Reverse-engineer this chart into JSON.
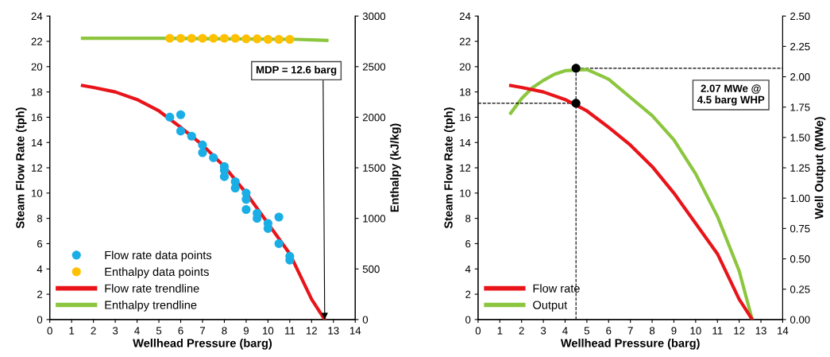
{
  "chart_data": [
    {
      "type": "line",
      "xlabel": "Wellhead Pressure (barg)",
      "ylabel": "Steam Flow Rate (tph)",
      "y2label": "Enthalpy (kJ/kg)",
      "xlim": [
        0,
        14
      ],
      "xticks": [
        0,
        1,
        2,
        3,
        4,
        5,
        6,
        7,
        8,
        9,
        10,
        11,
        12,
        13,
        14
      ],
      "ylim": [
        0,
        24
      ],
      "yticks": [
        0,
        2,
        4,
        6,
        8,
        10,
        12,
        14,
        16,
        18,
        20,
        22,
        24
      ],
      "y2lim": [
        0,
        3000
      ],
      "y2ticks": [
        0,
        500,
        1000,
        1500,
        2000,
        2500,
        3000
      ],
      "legend": "bottom left",
      "grid": false,
      "annotations": [
        {
          "text": "MDP = 12.6 barg",
          "x": 12.6,
          "y": 0
        }
      ],
      "series": [
        {
          "name": "Flow rate data points",
          "type": "scatter",
          "marker": "circle",
          "color": "#1aaee6",
          "x": [
            5.5,
            6.0,
            6.0,
            6.5,
            7.0,
            7.0,
            7.5,
            8.0,
            8.0,
            8.0,
            8.5,
            8.5,
            9.0,
            9.0,
            9.0,
            9.5,
            9.5,
            10.0,
            10.0,
            10.5,
            10.5,
            11.0,
            11.0
          ],
          "values": [
            16.0,
            16.2,
            14.9,
            14.5,
            13.8,
            13.2,
            12.8,
            12.1,
            11.8,
            11.3,
            10.9,
            10.4,
            10.0,
            9.5,
            8.7,
            8.4,
            8.0,
            7.6,
            7.2,
            8.1,
            6.0,
            5.0,
            4.7
          ]
        },
        {
          "name": "Enthalpy data points",
          "type": "scatter",
          "marker": "circle",
          "axis": "y2",
          "color": "#ffc000",
          "x": [
            5.5,
            6.0,
            6.5,
            7.0,
            7.5,
            8.0,
            8.5,
            9.0,
            9.5,
            10.0,
            10.5,
            11.0
          ],
          "values": [
            2780,
            2780,
            2780,
            2780,
            2780,
            2780,
            2780,
            2775,
            2775,
            2770,
            2770,
            2770
          ]
        },
        {
          "name": "Flow rate trendline",
          "color": "#e8141a",
          "x": [
            1.5,
            2,
            3,
            4,
            5,
            6,
            7,
            8,
            9,
            10,
            11,
            12,
            12.6
          ],
          "values": [
            18.5,
            18.35,
            18.0,
            17.4,
            16.5,
            15.2,
            13.8,
            12.1,
            10.0,
            7.6,
            5.2,
            1.6,
            0
          ]
        },
        {
          "name": "Enthalpy trendline",
          "axis": "y2",
          "color": "#8cc63f",
          "x": [
            1.5,
            3,
            5,
            11.3,
            12,
            12.7
          ],
          "values": [
            2780,
            2780,
            2780,
            2770,
            2765,
            2760
          ]
        }
      ]
    },
    {
      "type": "line",
      "xlabel": "Wellhead Pressure (barg)",
      "ylabel": "Steam Flow Rate (tph)",
      "y2label": "Well Output (MWe)",
      "xlim": [
        0,
        14
      ],
      "xticks": [
        0,
        1,
        2,
        3,
        4,
        5,
        6,
        7,
        8,
        9,
        10,
        11,
        12,
        13,
        14
      ],
      "ylim": [
        0,
        24
      ],
      "yticks": [
        0,
        2,
        4,
        6,
        8,
        10,
        12,
        14,
        16,
        18,
        20,
        22,
        24
      ],
      "y2lim": [
        0,
        2.5
      ],
      "y2ticks": [
        {
          "value": 0,
          "label": "0.00"
        },
        {
          "value": 0.25,
          "label": "0.25"
        },
        {
          "value": 0.5,
          "label": "0.50"
        },
        {
          "value": 0.75,
          "label": "0.75"
        },
        {
          "value": 1.0,
          "label": "1.00"
        },
        {
          "value": 1.25,
          "label": "1.25"
        },
        {
          "value": 1.5,
          "label": "1.50"
        },
        {
          "value": 1.75,
          "label": "1.75"
        },
        {
          "value": 2.0,
          "label": "2.00"
        },
        {
          "value": 2.25,
          "label": "2.25"
        },
        {
          "value": 2.5,
          "label": "2.50"
        }
      ],
      "legend": "bottom left",
      "grid": false,
      "annotations": [
        "2.07 MWe @\n4.5 barg WHP"
      ],
      "ref_lines": [
        {
          "axis": "x",
          "value": 4.5,
          "color": "#000000",
          "line_style": "dashed"
        },
        {
          "axis": "y",
          "value": 17.1,
          "color": "#000000",
          "line_style": "dashed"
        },
        {
          "axis": "y2",
          "value": 2.07,
          "color": "#000000",
          "line_style": "dashed"
        }
      ],
      "series": [
        {
          "name": "Flow rate",
          "color": "#e8141a",
          "x": [
            1.5,
            2,
            3,
            4,
            5,
            6,
            7,
            8,
            9,
            10,
            11,
            12,
            12.6
          ],
          "values": [
            18.5,
            18.35,
            18.0,
            17.4,
            16.5,
            15.2,
            13.8,
            12.1,
            10.0,
            7.6,
            5.2,
            1.6,
            0
          ]
        },
        {
          "name": "Output",
          "axis": "y2",
          "color": "#8cc63f",
          "x": [
            1.5,
            2,
            2.5,
            3,
            3.5,
            4,
            5,
            6,
            7,
            8,
            9,
            10,
            11,
            12,
            12.6
          ],
          "values": [
            1.7,
            1.82,
            1.91,
            1.97,
            2.02,
            2.05,
            2.06,
            1.98,
            1.83,
            1.68,
            1.48,
            1.2,
            0.85,
            0.4,
            0
          ]
        },
        {
          "type": "scatter",
          "marker": "circle",
          "color": "#000000",
          "x": [
            4.5
          ],
          "values": [
            17.1
          ]
        },
        {
          "type": "scatter",
          "marker": "circle",
          "axis": "y2",
          "color": "#000000",
          "x": [
            4.5
          ],
          "values": [
            2.07
          ]
        }
      ]
    }
  ]
}
